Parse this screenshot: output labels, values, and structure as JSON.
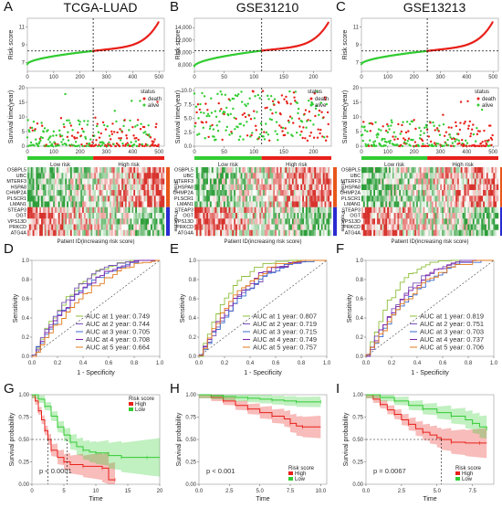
{
  "colors": {
    "green": "#33cc33",
    "red": "#e8201a",
    "heat_red": "#d7302a",
    "heat_green": "#2e9e3a",
    "risk_bar": "#e8561a",
    "protective_bar": "#2a2ad0",
    "auc_colors": [
      "#8dbf3a",
      "#7a52b8",
      "#3a6ad0",
      "#7a1fa8",
      "#e07a1a"
    ],
    "km_high": "#e8201a",
    "km_low": "#33cc33"
  },
  "panel_labels": [
    "A",
    "B",
    "C",
    "D",
    "E",
    "F",
    "G",
    "H",
    "I"
  ],
  "titles": [
    "TCGA-LUAD",
    "GSE31210",
    "GSE13213"
  ],
  "genes": [
    "OSBPL5",
    "UBC",
    "MTERF3",
    "HSPA8",
    "CHMP2A",
    "PLSCR1",
    "LMAN1",
    "STEAP3",
    "OGT",
    "VPS13D",
    "PRKCD",
    "ATG4A"
  ],
  "heat_side_labels": {
    "risk": "Risky",
    "protective": "Protective"
  },
  "labels": {
    "risk_score": "Risk score",
    "survival_time": "Survival time(year)",
    "status": "status",
    "death": "death",
    "alive": "alive",
    "low_risk": "Low risk",
    "high_risk": "High risk",
    "patient_id": "Patient ID(increasing risk score)",
    "sensitivity": "Sensitivity",
    "one_minus_spec": "1 - Specificity",
    "survival_probability": "Survival probability",
    "time": "Time",
    "risk_score_legend": "Risk score",
    "high": "High",
    "low": "Low"
  },
  "chart_data": [
    {
      "panel": "A",
      "type": "scatter",
      "title": "TCGA-LUAD",
      "ylabel": "Risk score",
      "ylim": [
        6,
        12
      ],
      "yticks": [
        7,
        9,
        11
      ],
      "xlim": [
        0,
        520
      ],
      "xticks": [
        0,
        100,
        200,
        300,
        400,
        500
      ],
      "n": 500,
      "cutoff_index": 250,
      "cutoff_value": 8.3,
      "low": 6.8,
      "high": 11.6,
      "survival": {
        "ylabel": "Survival time(year)",
        "ylim": [
          0,
          20
        ],
        "yticks": [
          0,
          5,
          10,
          15,
          20
        ],
        "n": 500
      }
    },
    {
      "panel": "B",
      "type": "scatter",
      "title": "GSE31210",
      "ylabel": "Risk score",
      "ylim": [
        7000,
        15500
      ],
      "yticks": [
        8000,
        10000,
        12000,
        14000
      ],
      "xlim": [
        0,
        230
      ],
      "xticks": [
        0,
        50,
        100,
        150,
        200
      ],
      "n": 226,
      "cutoff_index": 113,
      "cutoff_value": 10300,
      "low": 7800,
      "high": 14800,
      "survival": {
        "ylabel": "Survival time(year)",
        "ylim": [
          0,
          10.5
        ],
        "yticks": [
          0,
          2.5,
          5.0,
          7.5,
          10.0
        ],
        "n": 226
      }
    },
    {
      "panel": "C",
      "type": "scatter",
      "title": "GSE13213",
      "ylabel": "Risk score",
      "ylim": [
        6,
        12
      ],
      "yticks": [
        7,
        9,
        11
      ],
      "xlim": [
        0,
        520
      ],
      "xticks": [
        0,
        100,
        200,
        300,
        400,
        500
      ],
      "n": 500,
      "cutoff_index": 250,
      "cutoff_value": 8.3,
      "low": 6.8,
      "high": 11.6,
      "survival": {
        "ylabel": "Survival time(year)",
        "ylim": [
          0,
          20
        ],
        "yticks": [
          0,
          5,
          10,
          15,
          20
        ],
        "n": 500
      }
    },
    {
      "panel": "D",
      "type": "line",
      "xlabel": "1 - Specificity",
      "ylabel": "Sensitivity",
      "xlim": [
        0,
        1
      ],
      "ylim": [
        0,
        1
      ],
      "xticks": [
        0.0,
        0.2,
        0.4,
        0.6,
        0.8,
        1.0
      ],
      "series": [
        {
          "name": "AUC at 1 year: 0.749",
          "auc": 0.749
        },
        {
          "name": "AUC at 2 year: 0.744",
          "auc": 0.744
        },
        {
          "name": "AUC at 3 year: 0.705",
          "auc": 0.705
        },
        {
          "name": "AUC at 4 year: 0.708",
          "auc": 0.708
        },
        {
          "name": "AUC at 5 year: 0.664",
          "auc": 0.664
        }
      ]
    },
    {
      "panel": "E",
      "type": "line",
      "xlabel": "1 - Specificity",
      "ylabel": "Sensitivity",
      "xlim": [
        0,
        1
      ],
      "ylim": [
        0,
        1
      ],
      "xticks": [
        0.0,
        0.2,
        0.4,
        0.6,
        0.8,
        1.0
      ],
      "series": [
        {
          "name": "AUC at 1 year: 0.807",
          "auc": 0.807
        },
        {
          "name": "AUC at 2 year: 0.719",
          "auc": 0.719
        },
        {
          "name": "AUC at 3 year: 0.715",
          "auc": 0.715
        },
        {
          "name": "AUC at 4 year: 0.749",
          "auc": 0.749
        },
        {
          "name": "AUC at 5 year: 0.757",
          "auc": 0.757
        }
      ]
    },
    {
      "panel": "F",
      "type": "line",
      "xlabel": "1 - Specificity",
      "ylabel": "Sensitivity",
      "xlim": [
        0,
        1
      ],
      "ylim": [
        0,
        1
      ],
      "xticks": [
        0.0,
        0.2,
        0.4,
        0.6,
        0.8,
        1.0
      ],
      "series": [
        {
          "name": "AUC at 1 year: 0.819",
          "auc": 0.819
        },
        {
          "name": "AUC at 2 year: 0.751",
          "auc": 0.751
        },
        {
          "name": "AUC at 3 year: 0.703",
          "auc": 0.703
        },
        {
          "name": "AUC at 4 year: 0.737",
          "auc": 0.737
        },
        {
          "name": "AUC at 5 year: 0.706",
          "auc": 0.706
        }
      ]
    },
    {
      "panel": "G",
      "type": "line",
      "xlabel": "Time",
      "ylabel": "Survival probability",
      "xlim": [
        0,
        20
      ],
      "xticks": [
        0,
        5,
        10,
        15,
        20
      ],
      "ylim": [
        0,
        1
      ],
      "yticks": [
        0.0,
        0.25,
        0.5,
        0.75,
        1.0
      ],
      "pvalue": "p < 0.0001",
      "median_high": 2.5,
      "median_low": 5.5,
      "series": [
        {
          "name": "High",
          "points": [
            [
              0,
              1
            ],
            [
              0.5,
              0.93
            ],
            [
              1,
              0.82
            ],
            [
              1.5,
              0.72
            ],
            [
              2,
              0.6
            ],
            [
              2.5,
              0.5
            ],
            [
              3,
              0.38
            ],
            [
              4,
              0.3
            ],
            [
              5,
              0.25
            ],
            [
              6,
              0.22
            ],
            [
              8,
              0.2
            ],
            [
              10,
              0.2
            ],
            [
              11,
              0.18
            ],
            [
              12,
              0.05
            ],
            [
              13,
              0.05
            ]
          ]
        },
        {
          "name": "Low",
          "points": [
            [
              0,
              1
            ],
            [
              1,
              0.95
            ],
            [
              2,
              0.87
            ],
            [
              3,
              0.76
            ],
            [
              4,
              0.64
            ],
            [
              5,
              0.55
            ],
            [
              6,
              0.47
            ],
            [
              7,
              0.42
            ],
            [
              8,
              0.38
            ],
            [
              9,
              0.36
            ],
            [
              10,
              0.35
            ],
            [
              12,
              0.32
            ],
            [
              14,
              0.3
            ],
            [
              16,
              0.3
            ],
            [
              18,
              0.3
            ],
            [
              20,
              0.3
            ]
          ]
        }
      ]
    },
    {
      "panel": "H",
      "type": "line",
      "xlabel": "Time",
      "ylabel": "Survival probability",
      "xlim": [
        0,
        10.5
      ],
      "xticks": [
        0,
        2.5,
        5.0,
        7.5,
        10.0
      ],
      "ylim": [
        0,
        1
      ],
      "yticks": [
        0.0,
        0.25,
        0.5,
        0.75,
        1.0
      ],
      "pvalue": "p < 0.001",
      "series": [
        {
          "name": "High",
          "points": [
            [
              0,
              1
            ],
            [
              1,
              0.97
            ],
            [
              2,
              0.93
            ],
            [
              3,
              0.88
            ],
            [
              4,
              0.84
            ],
            [
              5,
              0.8
            ],
            [
              6,
              0.76
            ],
            [
              7,
              0.73
            ],
            [
              7.5,
              0.68
            ],
            [
              8,
              0.65
            ],
            [
              8.5,
              0.64
            ],
            [
              10,
              0.64
            ]
          ]
        },
        {
          "name": "Low",
          "points": [
            [
              0,
              1
            ],
            [
              1,
              0.99
            ],
            [
              2,
              0.98
            ],
            [
              3,
              0.97
            ],
            [
              4,
              0.96
            ],
            [
              5,
              0.95
            ],
            [
              6,
              0.94
            ],
            [
              7,
              0.93
            ],
            [
              8,
              0.92
            ],
            [
              9,
              0.92
            ],
            [
              10,
              0.92
            ]
          ]
        }
      ]
    },
    {
      "panel": "I",
      "type": "line",
      "xlabel": "Time",
      "ylabel": "Survival probability",
      "xlim": [
        0,
        9
      ],
      "xticks": [
        0.0,
        2.5,
        5.0,
        7.5
      ],
      "ylim": [
        0,
        1
      ],
      "yticks": [
        0.0,
        0.25,
        0.5,
        0.75,
        1.0
      ],
      "pvalue": "p = 0.0067",
      "median_high": 5.3,
      "series": [
        {
          "name": "High",
          "points": [
            [
              0,
              1
            ],
            [
              0.5,
              0.95
            ],
            [
              1,
              0.89
            ],
            [
              1.5,
              0.83
            ],
            [
              2,
              0.78
            ],
            [
              2.5,
              0.72
            ],
            [
              3,
              0.67
            ],
            [
              3.5,
              0.62
            ],
            [
              4,
              0.58
            ],
            [
              4.5,
              0.55
            ],
            [
              5,
              0.52
            ],
            [
              5.3,
              0.5
            ],
            [
              6,
              0.47
            ],
            [
              7,
              0.46
            ],
            [
              8,
              0.46
            ],
            [
              8.5,
              0.46
            ]
          ]
        },
        {
          "name": "Low",
          "points": [
            [
              0,
              1
            ],
            [
              1,
              0.97
            ],
            [
              2,
              0.93
            ],
            [
              3,
              0.88
            ],
            [
              4,
              0.84
            ],
            [
              5,
              0.8
            ],
            [
              6,
              0.76
            ],
            [
              7,
              0.72
            ],
            [
              7.5,
              0.68
            ],
            [
              8,
              0.64
            ],
            [
              8.5,
              0.62
            ]
          ]
        }
      ]
    }
  ]
}
